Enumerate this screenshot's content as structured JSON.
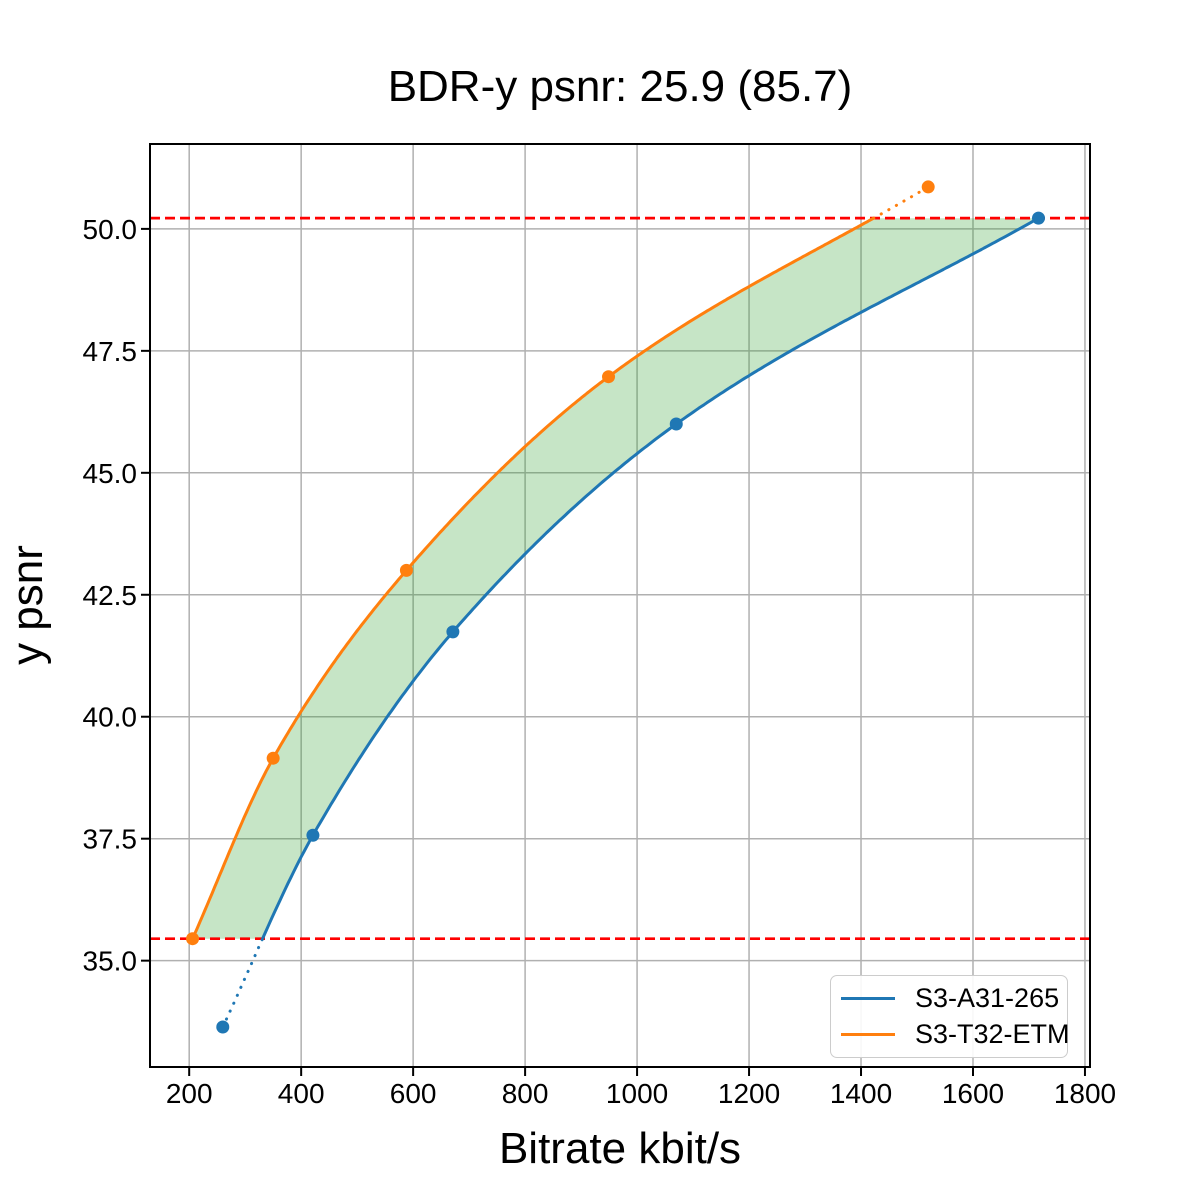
{
  "figure": {
    "background_color": "#ffffff"
  },
  "chart_data": {
    "type": "line",
    "title": "BDR-y psnr: 25.9 (85.7)",
    "xlabel": "Bitrate kbit/s",
    "ylabel": "y psnr",
    "xlim": [
      130,
      1809
    ],
    "ylim": [
      32.82,
      51.74
    ],
    "xticks": [
      200,
      400,
      600,
      800,
      1000,
      1200,
      1400,
      1600,
      1800
    ],
    "yticks": [
      35.0,
      37.5,
      40.0,
      42.5,
      45.0,
      47.5,
      50.0
    ],
    "grid": true,
    "grid_color": "#b0b0b0",
    "axis_color": "#000000",
    "series": [
      {
        "name": "S3-A31-265",
        "color": "#1f77b4",
        "marker": "circle",
        "points": [
          [
            260,
            33.64
          ],
          [
            421,
            37.57
          ],
          [
            671,
            41.74
          ],
          [
            1070,
            46.0
          ],
          [
            1717,
            50.22
          ]
        ]
      },
      {
        "name": "S3-T32-ETM",
        "color": "#ff7f0e",
        "marker": "circle",
        "points": [
          [
            206,
            35.45
          ],
          [
            350,
            39.15
          ],
          [
            588,
            43.0
          ],
          [
            949,
            46.97
          ],
          [
            1520,
            50.86
          ]
        ]
      }
    ],
    "bd_interval_lines": {
      "upper_psnr": 50.22,
      "lower_psnr": 35.45,
      "color": "#ff0000",
      "style": "dashed"
    },
    "fill_between": {
      "color": "#2ca02c",
      "opacity": 0.27,
      "psnr_range": [
        35.45,
        50.22
      ]
    },
    "legend": {
      "position": "lower right",
      "entries": [
        "S3-A31-265",
        "S3-T32-ETM"
      ]
    }
  }
}
